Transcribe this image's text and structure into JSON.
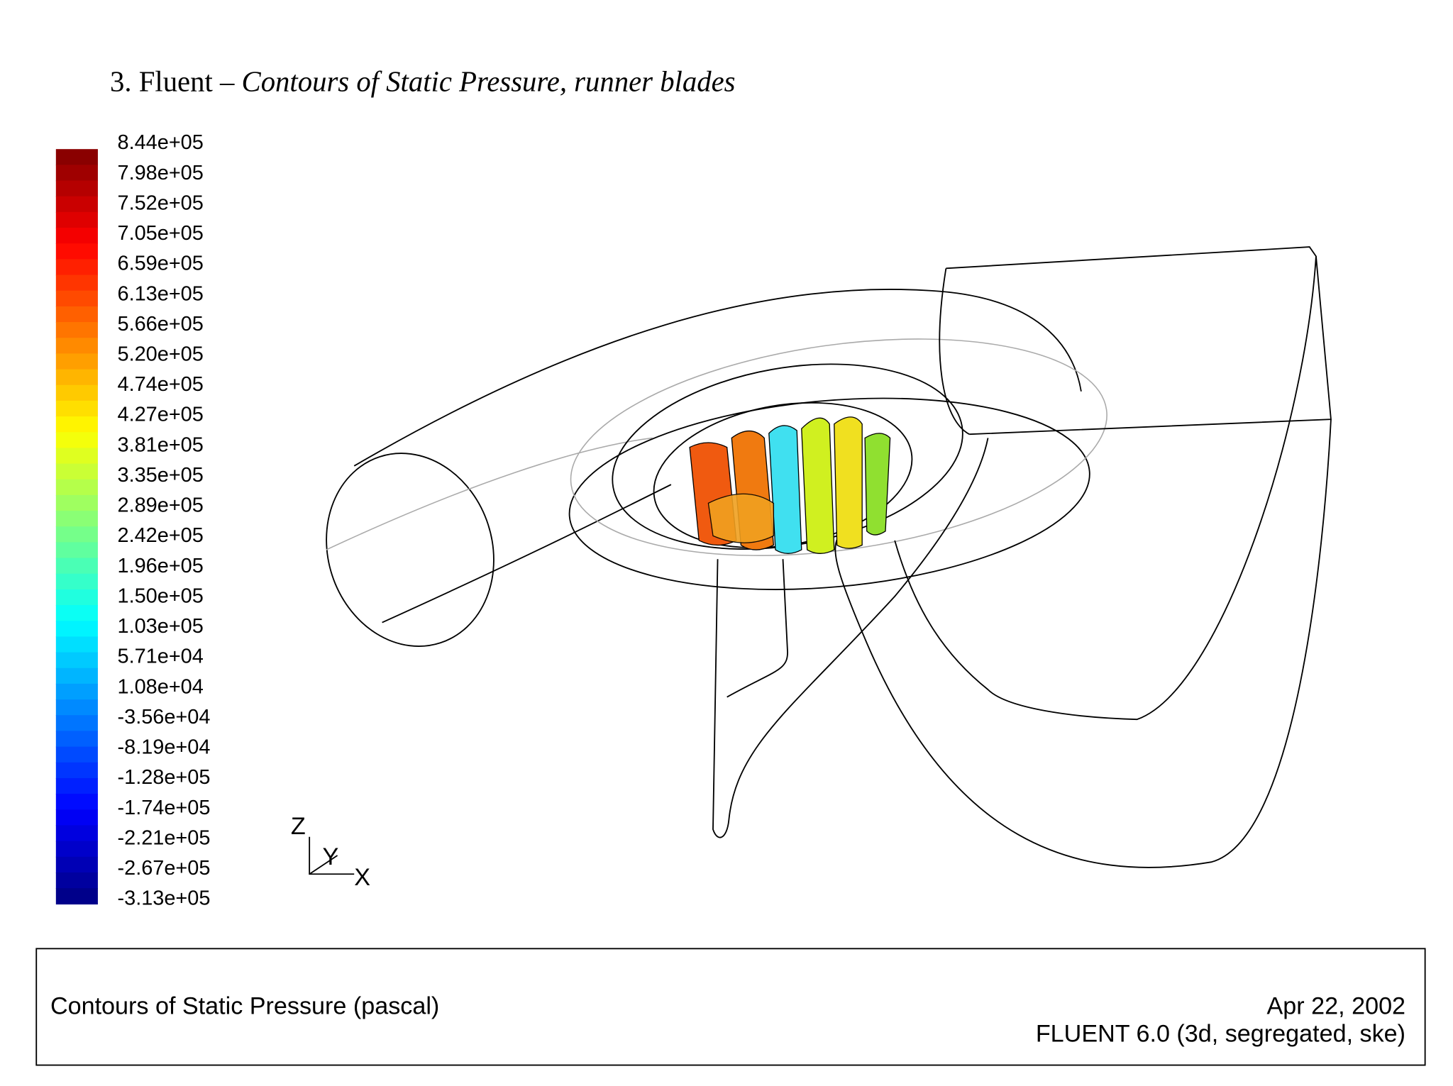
{
  "caption": {
    "prefix": "3. Fluent –",
    "italic": "Contours of Static Pressure, runner blades"
  },
  "colorbar": {
    "labels": [
      "8.44e+05",
      "7.98e+05",
      "7.52e+05",
      "7.05e+05",
      "6.59e+05",
      "6.13e+05",
      "5.66e+05",
      "5.20e+05",
      "4.74e+05",
      "4.27e+05",
      "3.81e+05",
      "3.35e+05",
      "2.89e+05",
      "2.42e+05",
      "1.96e+05",
      "1.50e+05",
      "1.03e+05",
      "5.71e+04",
      "1.08e+04",
      "-3.56e+04",
      "-8.19e+04",
      "-1.28e+05",
      "-1.74e+05",
      "-2.21e+05",
      "-2.67e+05",
      "-3.13e+05"
    ]
  },
  "axes_triad": {
    "z": "Z",
    "y": "Y",
    "x": "X"
  },
  "footer": {
    "left": "Contours of Static Pressure (pascal)",
    "date": "Apr 22, 2002",
    "version": "FLUENT 6.0 (3d, segregated, ske)"
  }
}
